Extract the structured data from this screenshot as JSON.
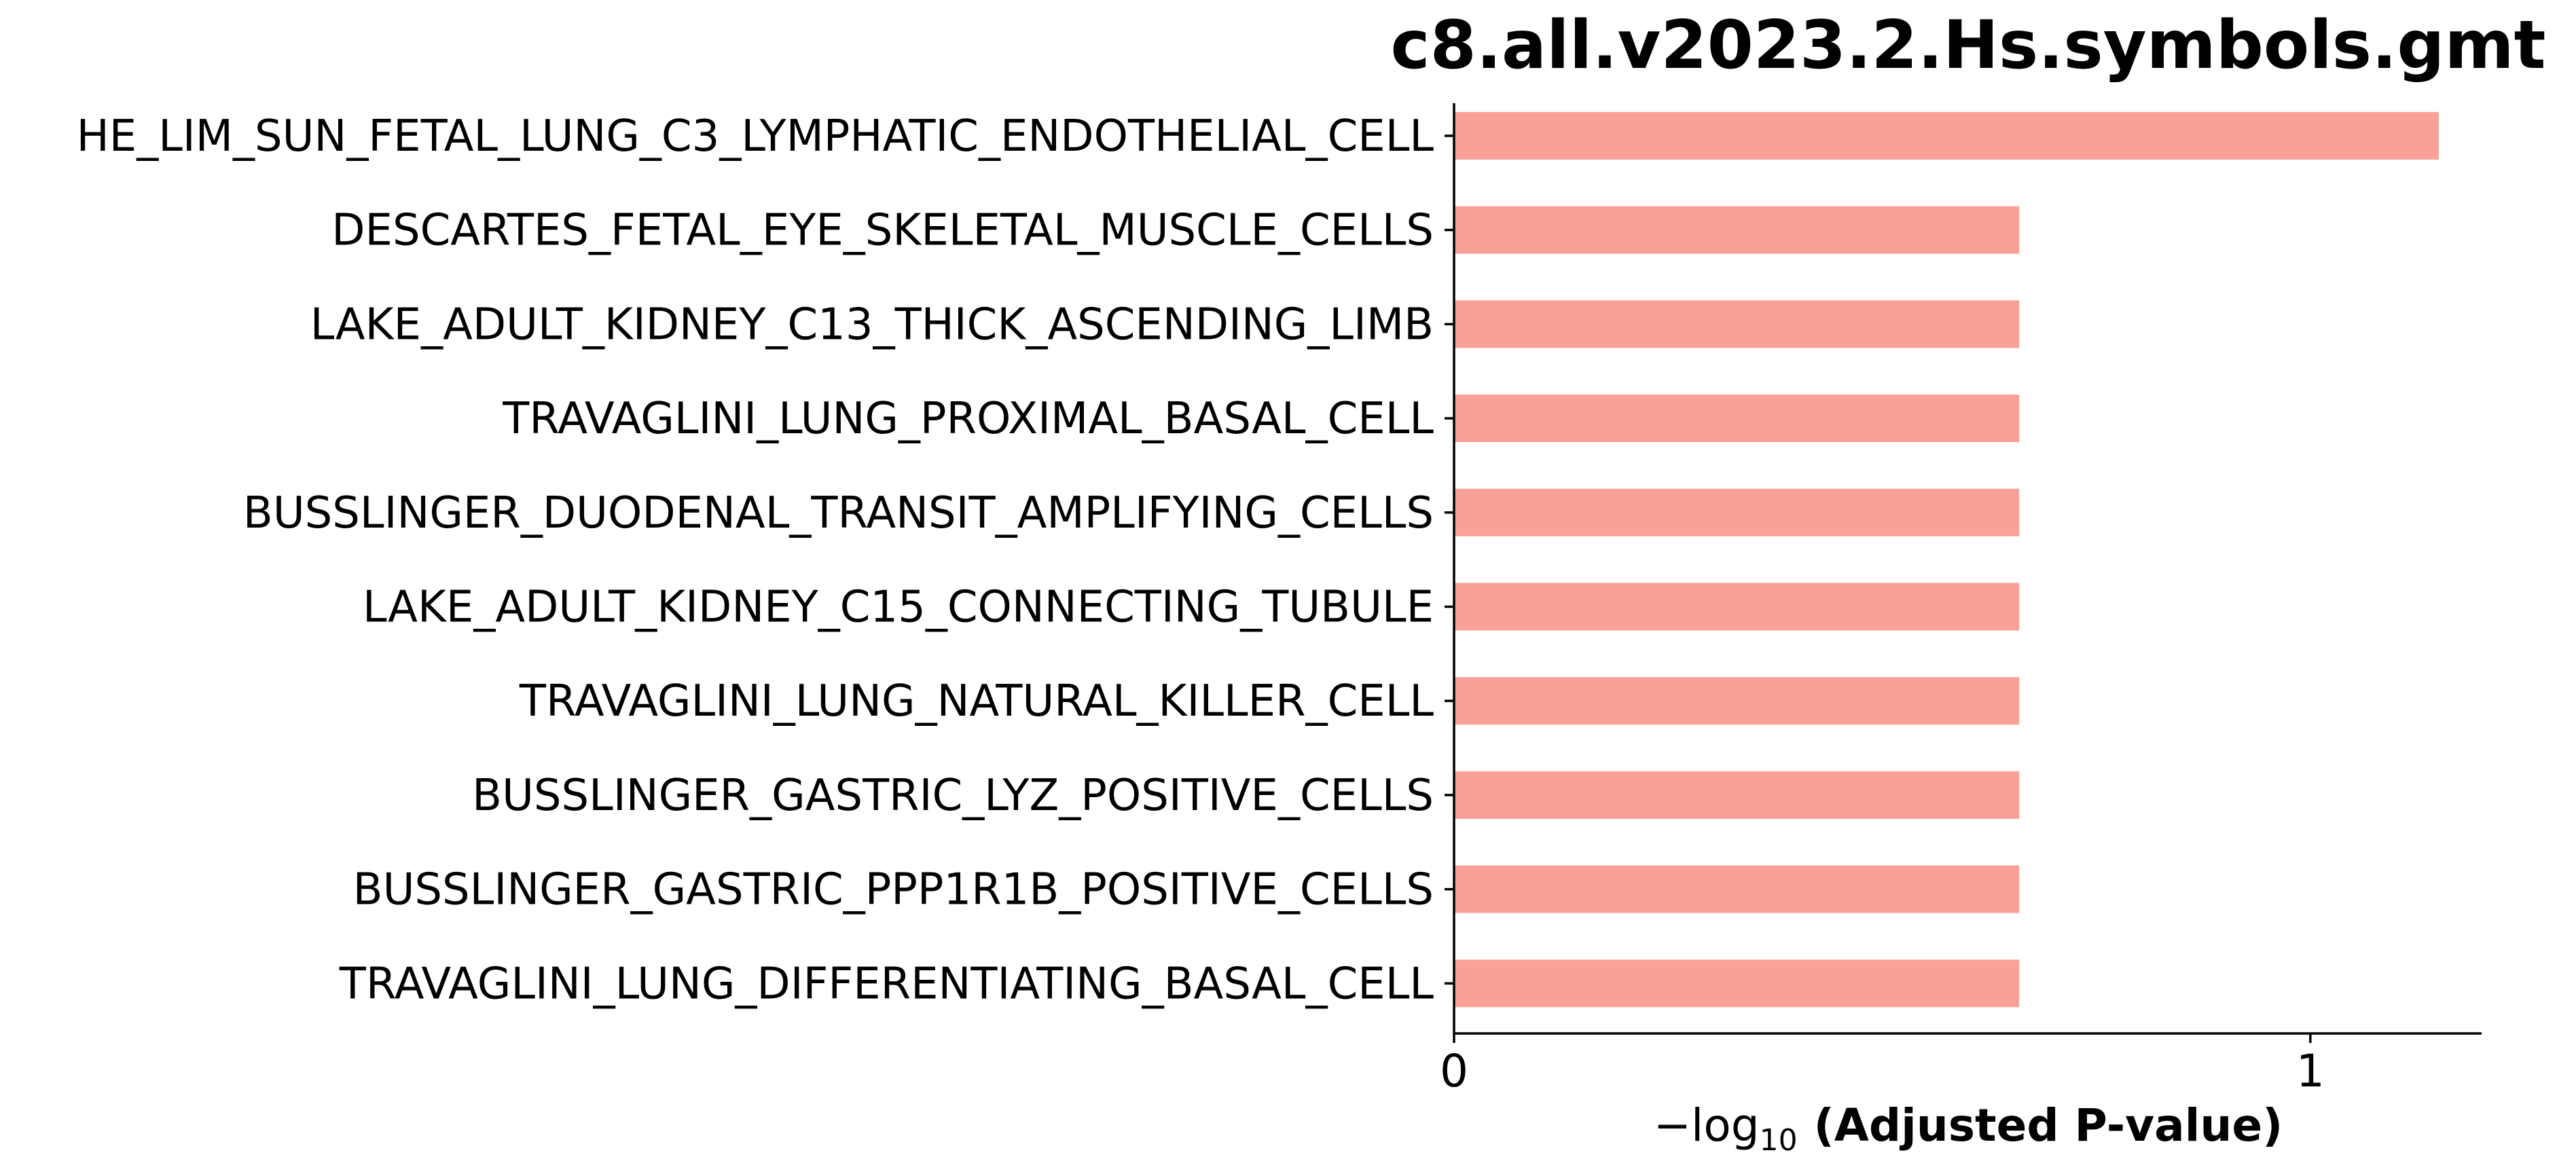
{
  "chart_data": {
    "type": "bar",
    "orientation": "horizontal",
    "title": "c8.all.v2023.2.Hs.symbols.gmt",
    "xlabel_prefix": "−log",
    "xlabel_subscript": "10",
    "xlabel_main": "(Adjusted P-value)",
    "ylabel": "",
    "xlim": [
      0,
      1.2
    ],
    "xticks": [
      "0",
      "1"
    ],
    "bar_color": "#f9a196",
    "categories": [
      "HE_LIM_SUN_FETAL_LUNG_C3_LYMPHATIC_ENDOTHELIAL_CELL",
      "DESCARTES_FETAL_EYE_SKELETAL_MUSCLE_CELLS",
      "LAKE_ADULT_KIDNEY_C13_THICK_ASCENDING_LIMB",
      "TRAVAGLINI_LUNG_PROXIMAL_BASAL_CELL",
      "BUSSLINGER_DUODENAL_TRANSIT_AMPLIFYING_CELLS",
      "LAKE_ADULT_KIDNEY_C15_CONNECTING_TUBULE",
      "TRAVAGLINI_LUNG_NATURAL_KILLER_CELL",
      "BUSSLINGER_GASTRIC_LYZ_POSITIVE_CELLS",
      "BUSSLINGER_GASTRIC_PPP1R1B_POSITIVE_CELLS",
      "TRAVAGLINI_LUNG_DIFFERENTIATING_BASAL_CELL"
    ],
    "values": [
      1.15,
      0.66,
      0.66,
      0.66,
      0.66,
      0.66,
      0.66,
      0.66,
      0.66,
      0.66
    ],
    "grid": false,
    "legend": "none"
  }
}
